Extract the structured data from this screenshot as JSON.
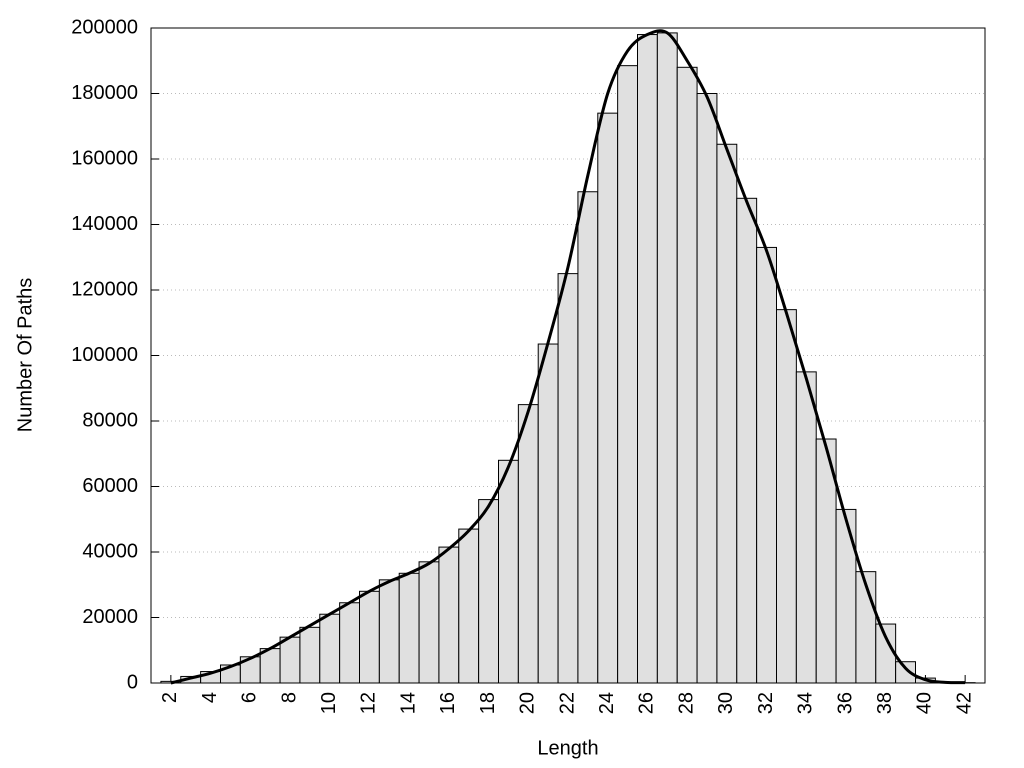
{
  "chart_data": {
    "type": "histogram",
    "x_label": "Length",
    "y_label": "Number Of Paths",
    "x": [
      2,
      3,
      4,
      5,
      6,
      7,
      8,
      9,
      10,
      11,
      12,
      13,
      14,
      15,
      16,
      17,
      18,
      19,
      20,
      21,
      22,
      23,
      24,
      25,
      26,
      27,
      28,
      29,
      30,
      31,
      32,
      33,
      34,
      35,
      36,
      37,
      38,
      39,
      40,
      41,
      42
    ],
    "values": [
      500,
      2000,
      3500,
      5500,
      8000,
      10500,
      14000,
      17000,
      21000,
      24500,
      28000,
      31500,
      33500,
      37000,
      41500,
      47000,
      56000,
      68000,
      85000,
      103500,
      125000,
      150000,
      174000,
      188500,
      198000,
      198500,
      188000,
      180000,
      164500,
      148000,
      133000,
      114000,
      95000,
      74500,
      53000,
      34000,
      18000,
      6500,
      1500,
      300,
      100
    ],
    "curve_values": [
      0,
      1500,
      3000,
      5000,
      7500,
      10500,
      14000,
      17500,
      21000,
      24500,
      28000,
      31000,
      33500,
      36500,
      41000,
      46500,
      54000,
      66000,
      83000,
      104000,
      127000,
      155000,
      180000,
      193000,
      198000,
      198500,
      190000,
      179000,
      163000,
      147000,
      132000,
      113000,
      93000,
      72000,
      50000,
      30000,
      14000,
      4500,
      1000,
      200,
      100
    ],
    "color": "#e0e0e0",
    "curve_color": "#000000",
    "xlim": [
      1,
      43
    ],
    "xticks": [
      2,
      4,
      6,
      8,
      10,
      12,
      14,
      16,
      18,
      20,
      22,
      24,
      26,
      28,
      30,
      32,
      34,
      36,
      38,
      40,
      42
    ],
    "ylim": [
      0,
      200000
    ],
    "yticks": [
      0,
      20000,
      40000,
      60000,
      80000,
      100000,
      120000,
      140000,
      160000,
      180000,
      200000
    ],
    "grid": true
  }
}
